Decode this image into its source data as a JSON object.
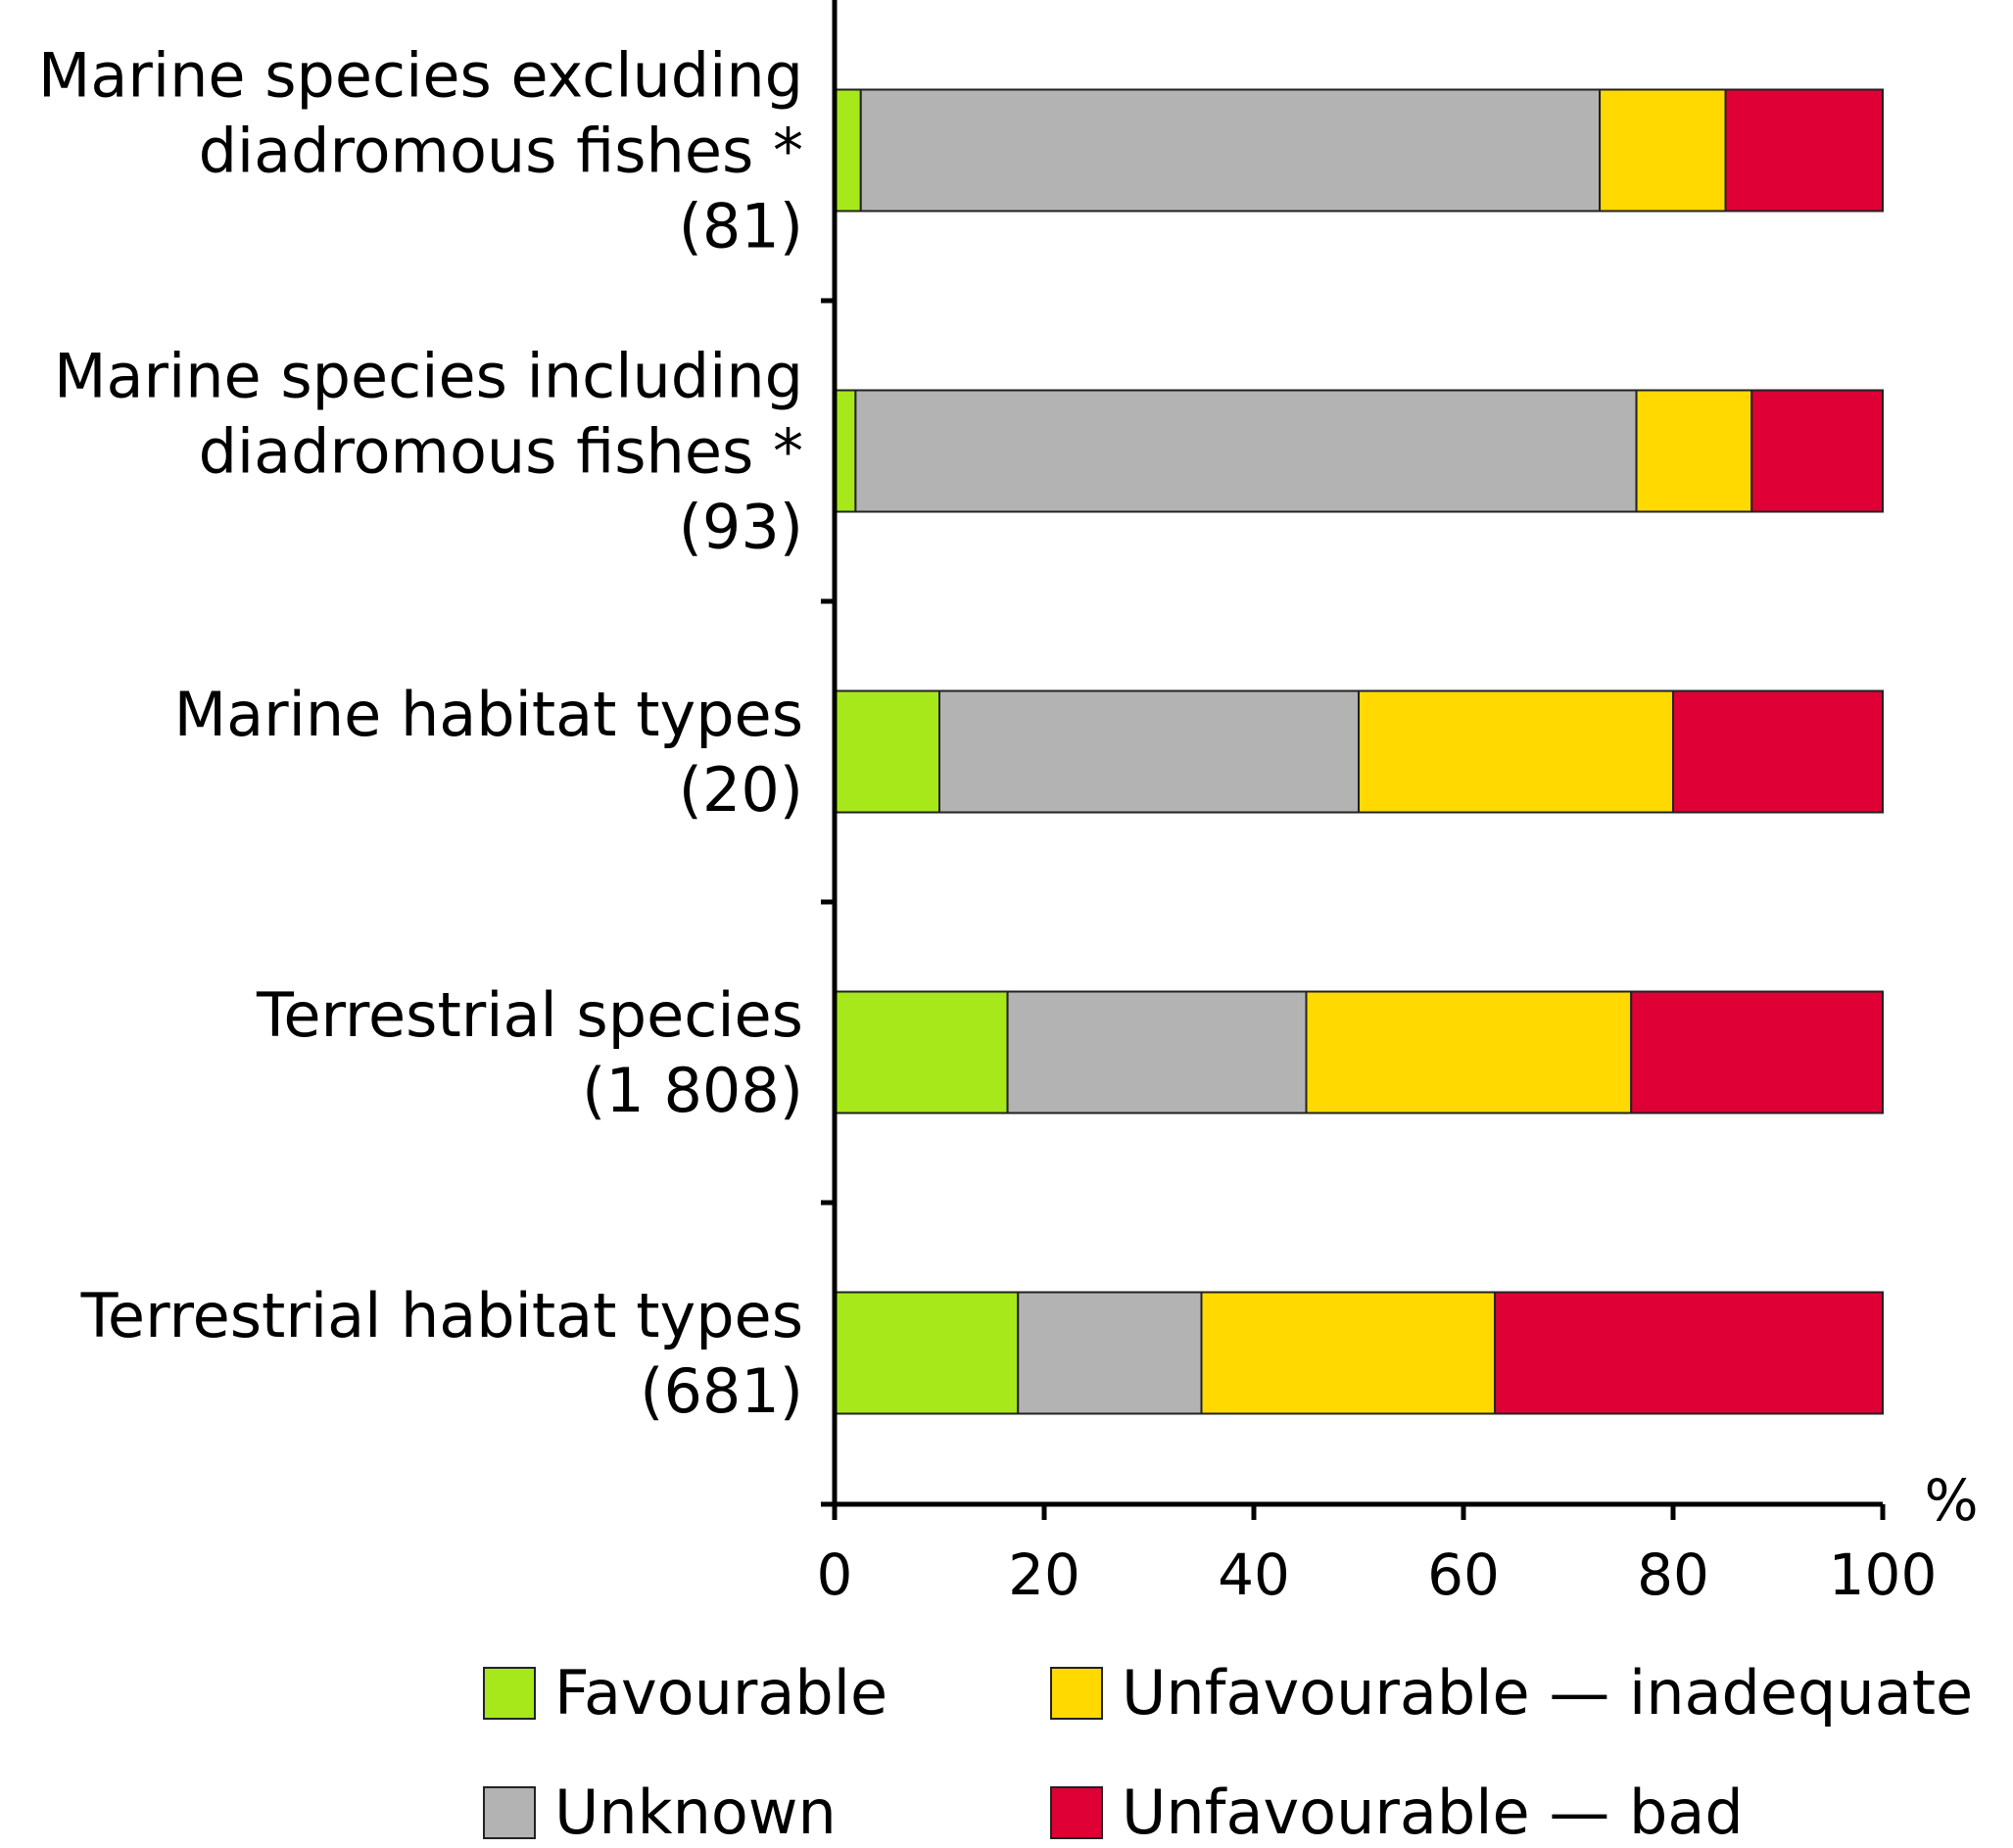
{
  "chart_data": {
    "type": "bar",
    "orientation": "horizontal",
    "stacked": true,
    "categories": [
      [
        "Marine species excluding",
        "diadromous fishes *",
        "(81)"
      ],
      [
        "Marine species including",
        "diadromous fishes *",
        "(93)"
      ],
      [
        "Marine habitat types",
        "(20)"
      ],
      [
        "Terrestrial species",
        "(1 808)"
      ],
      [
        "Terrestrial habitat types",
        "(681)"
      ]
    ],
    "series": [
      {
        "name": "Favourable",
        "color": "#a6e81a",
        "values": [
          2.5,
          2,
          10,
          16.5,
          17.5
        ]
      },
      {
        "name": "Unknown",
        "color": "#b3b3b3",
        "values": [
          70.5,
          74.5,
          40,
          28.5,
          17.5
        ]
      },
      {
        "name": "Unfavourable — inadequate",
        "color": "#ffd900",
        "values": [
          12,
          11,
          30,
          31,
          28
        ]
      },
      {
        "name": "Unfavourable — bad",
        "color": "#df0035",
        "values": [
          15,
          12.5,
          20,
          24,
          37
        ]
      }
    ],
    "x_ticks": [
      "0",
      "20",
      "40",
      "60",
      "80",
      "100"
    ],
    "xlim": [
      0,
      100
    ],
    "x_unit": "%",
    "grid": false,
    "legend_position": "bottom"
  }
}
